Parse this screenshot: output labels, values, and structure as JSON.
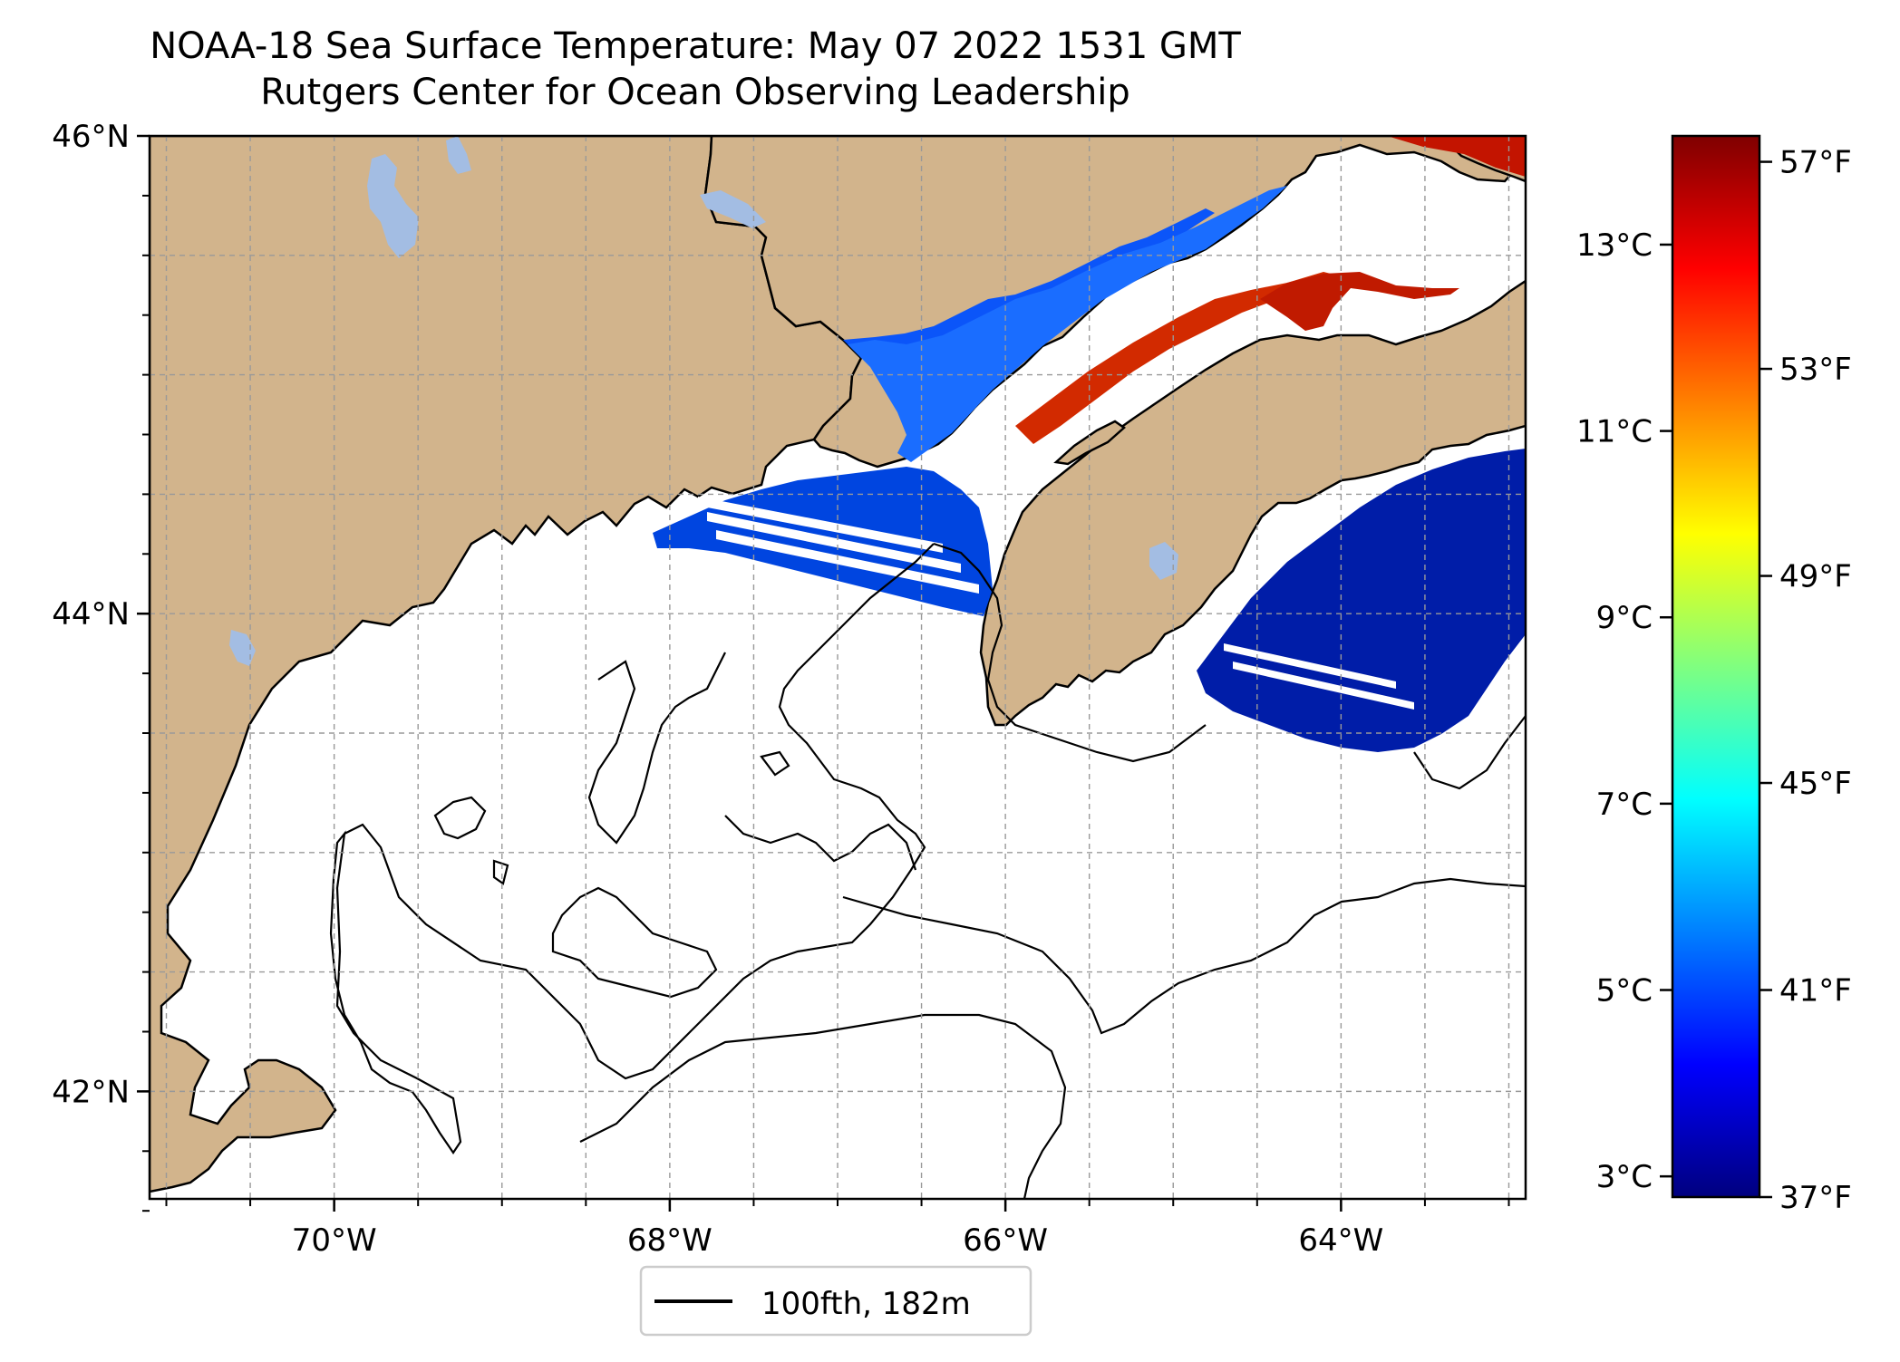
{
  "title": "NOAA-18 Sea Surface Temperature: May 07 2022 1531 GMT",
  "subtitle": "Rutgers Center for Ocean Observing Leadership",
  "map": {
    "extent": {
      "lon": [
        -71.1,
        -62.9
      ],
      "lat": [
        41.55,
        46.0
      ]
    },
    "lat_ticks": [
      {
        "label": "46°N",
        "lat": 46.0
      },
      {
        "label": "44°N",
        "lat": 44.0
      },
      {
        "label": "42°N",
        "lat": 42.0
      }
    ],
    "lon_ticks": [
      {
        "label": "70°W",
        "lon": -70.0
      },
      {
        "label": "68°W",
        "lon": -68.0
      },
      {
        "label": "66°W",
        "lon": -66.0
      },
      {
        "label": "64°W",
        "lon": -64.0
      }
    ],
    "gridlines": true,
    "land_color": "#d2b48c",
    "lake_color": "#a3bde3",
    "ocean_no_data_color": "#ffffff"
  },
  "legend": {
    "label": "100fth, 182m",
    "placement": "bottom-center"
  },
  "colorbar": {
    "colormap": "jet",
    "celsius_ticks": [
      {
        "label": "13°C",
        "value": 13
      },
      {
        "label": "11°C",
        "value": 11
      },
      {
        "label": "9°C",
        "value": 9
      },
      {
        "label": "7°C",
        "value": 7
      },
      {
        "label": "5°C",
        "value": 5
      },
      {
        "label": "3°C",
        "value": 3
      }
    ],
    "fahrenheit_ticks": [
      {
        "label": "57°F",
        "value": 57
      },
      {
        "label": "53°F",
        "value": 53
      },
      {
        "label": "49°F",
        "value": 49
      },
      {
        "label": "45°F",
        "value": 45
      },
      {
        "label": "41°F",
        "value": 41
      },
      {
        "label": "37°F",
        "value": 37
      }
    ],
    "range_f": [
      37,
      57.5
    ]
  }
}
